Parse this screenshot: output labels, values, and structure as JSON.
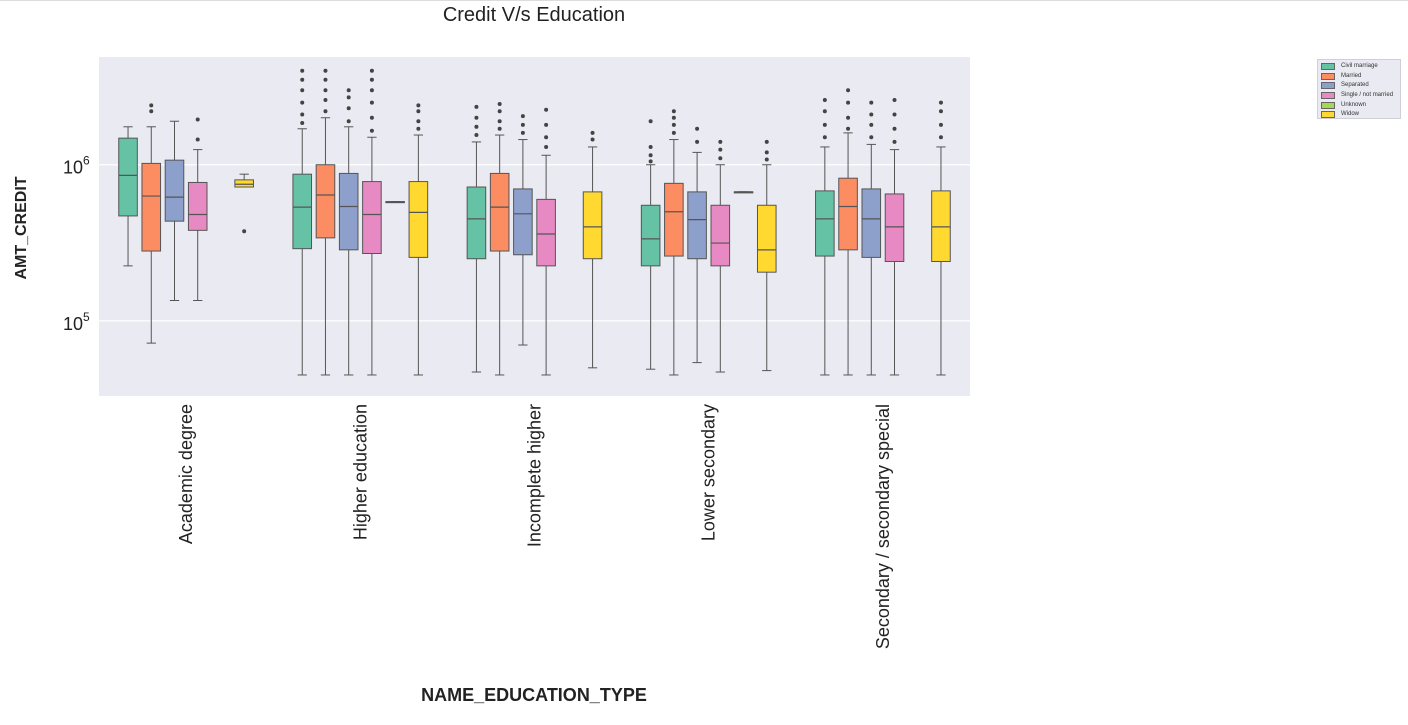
{
  "chart_data": {
    "type": "box",
    "title": "Credit V/s Education",
    "xlabel": "NAME_EDUCATION_TYPE",
    "ylabel": "AMT_CREDIT",
    "yscale": "log",
    "ylim": [
      33000,
      4900000
    ],
    "yticks": [
      {
        "value": 100000,
        "base": "10",
        "exp": "5"
      },
      {
        "value": 1000000,
        "base": "10",
        "exp": "6"
      }
    ],
    "grid": true,
    "legend_position": "top-right, outside plot",
    "categories": [
      "Academic degree",
      "Higher education",
      "Incomplete higher",
      "Lower secondary",
      "Secondary / secondary special"
    ],
    "series": [
      {
        "name": "Civil marriage",
        "color": "#66c2a5"
      },
      {
        "name": "Married",
        "color": "#fc8d62"
      },
      {
        "name": "Separated",
        "color": "#8da0cb"
      },
      {
        "name": "Single / not married",
        "color": "#e78ac3"
      },
      {
        "name": "Unknown",
        "color": "#a6d854"
      },
      {
        "name": "Widow",
        "color": "#ffd92f"
      }
    ],
    "boxes": [
      [
        {
          "min": 225000,
          "q1": 470000,
          "median": 855000,
          "q3": 1480000,
          "max": 1750000,
          "outliers": []
        },
        {
          "min": 72000,
          "q1": 280000,
          "median": 630000,
          "q3": 1020000,
          "max": 1750000,
          "outliers": [
            2200000,
            2400000
          ]
        },
        {
          "min": 135000,
          "q1": 435000,
          "median": 620000,
          "q3": 1070000,
          "max": 1900000,
          "outliers": []
        },
        {
          "min": 135000,
          "q1": 380000,
          "median": 480000,
          "q3": 770000,
          "max": 1250000,
          "outliers": [
            1450000,
            1950000
          ]
        },
        null,
        {
          "min": 720000,
          "q1": 720000,
          "median": 750000,
          "q3": 800000,
          "max": 870000,
          "outliers": [
            375000
          ]
        }
      ],
      [
        {
          "min": 45000,
          "q1": 290000,
          "median": 535000,
          "q3": 870000,
          "max": 1700000,
          "outliers": [
            1850000,
            2100000,
            2500000,
            3000000,
            3500000,
            4000000
          ]
        },
        {
          "min": 45000,
          "q1": 340000,
          "median": 640000,
          "q3": 1000000,
          "max": 2000000,
          "outliers": [
            2200000,
            2600000,
            3000000,
            3500000,
            4000000
          ]
        },
        {
          "min": 45000,
          "q1": 285000,
          "median": 540000,
          "q3": 880000,
          "max": 1750000,
          "outliers": [
            1900000,
            2300000,
            2700000,
            3000000
          ]
        },
        {
          "min": 45000,
          "q1": 270000,
          "median": 480000,
          "q3": 780000,
          "max": 1500000,
          "outliers": [
            1650000,
            2000000,
            2500000,
            3000000,
            3500000,
            4000000
          ]
        },
        {
          "min": 580000,
          "q1": 580000,
          "median": 580000,
          "q3": 580000,
          "max": 580000,
          "outliers": []
        },
        {
          "min": 45000,
          "q1": 255000,
          "median": 495000,
          "q3": 780000,
          "max": 1550000,
          "outliers": [
            1700000,
            1900000,
            2200000,
            2400000
          ]
        }
      ],
      [
        {
          "min": 47000,
          "q1": 250000,
          "median": 450000,
          "q3": 720000,
          "max": 1400000,
          "outliers": [
            1550000,
            1750000,
            2000000,
            2350000
          ]
        },
        {
          "min": 45000,
          "q1": 280000,
          "median": 535000,
          "q3": 880000,
          "max": 1550000,
          "outliers": [
            1700000,
            1900000,
            2200000,
            2450000
          ]
        },
        {
          "min": 70000,
          "q1": 265000,
          "median": 485000,
          "q3": 700000,
          "max": 1450000,
          "outliers": [
            1600000,
            1800000,
            2050000
          ]
        },
        {
          "min": 45000,
          "q1": 225000,
          "median": 360000,
          "q3": 600000,
          "max": 1150000,
          "outliers": [
            1300000,
            1500000,
            1800000,
            2250000
          ]
        },
        null,
        {
          "min": 50000,
          "q1": 250000,
          "median": 400000,
          "q3": 670000,
          "max": 1300000,
          "outliers": [
            1450000,
            1600000
          ]
        }
      ],
      [
        {
          "min": 49000,
          "q1": 225000,
          "median": 335000,
          "q3": 550000,
          "max": 1000000,
          "outliers": [
            1050000,
            1150000,
            1300000,
            1900000
          ]
        },
        {
          "min": 45000,
          "q1": 260000,
          "median": 500000,
          "q3": 760000,
          "max": 1450000,
          "outliers": [
            1600000,
            1800000,
            2000000,
            2200000
          ]
        },
        {
          "min": 54000,
          "q1": 250000,
          "median": 445000,
          "q3": 670000,
          "max": 1200000,
          "outliers": [
            1400000,
            1700000
          ]
        },
        {
          "min": 47000,
          "q1": 225000,
          "median": 315000,
          "q3": 550000,
          "max": 1000000,
          "outliers": [
            1100000,
            1250000,
            1400000
          ]
        },
        {
          "min": 670000,
          "q1": 670000,
          "median": 670000,
          "q3": 670000,
          "max": 670000,
          "outliers": []
        },
        {
          "min": 48000,
          "q1": 205000,
          "median": 285000,
          "q3": 550000,
          "max": 1000000,
          "outliers": [
            1080000,
            1200000,
            1400000
          ]
        }
      ],
      [
        {
          "min": 45000,
          "q1": 260000,
          "median": 450000,
          "q3": 680000,
          "max": 1300000,
          "outliers": [
            1500000,
            1800000,
            2200000,
            2600000
          ]
        },
        {
          "min": 45000,
          "q1": 285000,
          "median": 540000,
          "q3": 820000,
          "max": 1600000,
          "outliers": [
            1700000,
            2000000,
            2500000,
            3000000
          ]
        },
        {
          "min": 45000,
          "q1": 255000,
          "median": 450000,
          "q3": 700000,
          "max": 1350000,
          "outliers": [
            1500000,
            1800000,
            2100000,
            2500000
          ]
        },
        {
          "min": 45000,
          "q1": 240000,
          "median": 400000,
          "q3": 650000,
          "max": 1250000,
          "outliers": [
            1400000,
            1700000,
            2100000,
            2600000
          ]
        },
        null,
        {
          "min": 45000,
          "q1": 240000,
          "median": 400000,
          "q3": 680000,
          "max": 1300000,
          "outliers": [
            1500000,
            1800000,
            2200000,
            2500000
          ]
        }
      ]
    ]
  }
}
